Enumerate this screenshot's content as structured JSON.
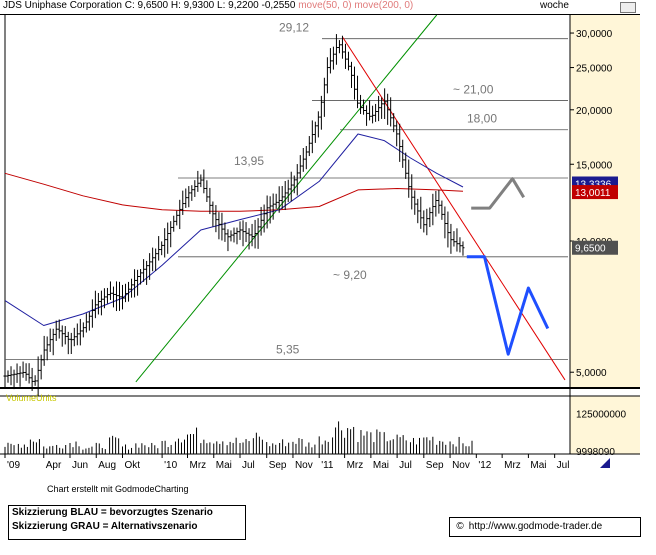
{
  "header": {
    "company": "JDS Uniphase Corporation",
    "quote": "C: 9,6500 H: 9,9300 L: 9,2200 -0,2550",
    "ma_legend": "move(50, 0) move(200, 0)",
    "period": "woche"
  },
  "colors": {
    "price": "#000000",
    "ma50": "#1f1fa0",
    "ma200": "#c00000",
    "trend_down": "#e00000",
    "trend_up": "#009000",
    "scenario_blue": "#1f4fff",
    "scenario_grey": "#808080",
    "axis_bg": "#fff6d8",
    "price_flag": "#505050",
    "ma200_flag": "#c00000",
    "ma50_flag": "#1a1a8f",
    "volume_label": "#c8c800"
  },
  "chart_data": {
    "type": "line",
    "title": "JDS Uniphase Corporation",
    "y_scale": "log",
    "ylim": [
      4.6,
      33
    ],
    "y_ticks": [
      "30,0000",
      "25,0000",
      "20,0000",
      "15,0000",
      "10,0000",
      "5,0000"
    ],
    "y_tick_values": [
      30,
      25,
      20,
      15,
      10,
      5
    ],
    "x_tick_labels": [
      "'09",
      "Apr",
      "Jun",
      "Aug",
      "Okt",
      "'10",
      "Mrz",
      "Mai",
      "Jul",
      "Sep",
      "Nov",
      "'11",
      "Mrz",
      "Mai",
      "Jul",
      "Sep",
      "Nov",
      "'12",
      "Mrz",
      "Mai",
      "Jul"
    ],
    "x_tick_dates": [
      "2009-01-01",
      "2009-04-01",
      "2009-06-01",
      "2009-08-01",
      "2009-10-01",
      "2010-01-01",
      "2010-03-01",
      "2010-05-01",
      "2010-07-01",
      "2010-09-01",
      "2010-11-01",
      "2011-01-01",
      "2011-03-01",
      "2011-05-01",
      "2011-07-01",
      "2011-09-01",
      "2011-11-01",
      "2012-01-01",
      "2012-03-01",
      "2012-05-01",
      "2012-07-01"
    ],
    "grid": false,
    "levels": [
      {
        "value": 29.12,
        "label": "29,12"
      },
      {
        "value": 21.0,
        "label": "~ 21,00"
      },
      {
        "value": 18.0,
        "label": "18,00"
      },
      {
        "value": 13.95,
        "label": "13,95"
      },
      {
        "value": 9.2,
        "label": "~ 9,20"
      },
      {
        "value": 5.35,
        "label": "5,35"
      }
    ],
    "price_series": {
      "name": "",
      "x": [
        "2009-01-01",
        "2009-02-15",
        "2009-03-10",
        "2009-04-01",
        "2009-05-01",
        "2009-06-01",
        "2009-07-01",
        "2009-08-01",
        "2009-09-01",
        "2009-10-01",
        "2009-11-01",
        "2009-12-01",
        "2010-01-01",
        "2010-02-01",
        "2010-03-01",
        "2010-04-01",
        "2010-05-01",
        "2010-06-01",
        "2010-07-01",
        "2010-08-01",
        "2010-09-01",
        "2010-10-01",
        "2010-11-01",
        "2010-12-01",
        "2011-01-01",
        "2011-01-20",
        "2011-02-15",
        "2011-03-15",
        "2011-04-01",
        "2011-05-01",
        "2011-06-01",
        "2011-07-01",
        "2011-08-01",
        "2011-09-01",
        "2011-10-01",
        "2011-11-01",
        "2011-12-01"
      ],
      "y": [
        4.9,
        5.0,
        4.7,
        5.6,
        6.3,
        5.9,
        6.3,
        7.2,
        7.6,
        7.4,
        8.2,
        8.9,
        9.8,
        11.3,
        12.8,
        13.8,
        11.4,
        10.2,
        10.6,
        10.2,
        11.9,
        12.4,
        13.6,
        15.9,
        19.5,
        25.0,
        28.5,
        24.5,
        20.5,
        19.2,
        21.0,
        17.5,
        12.8,
        10.9,
        12.5,
        10.1,
        9.65
      ]
    },
    "ma50": {
      "name": "move(50, 0)",
      "x": [
        "2009-01-01",
        "2009-04-01",
        "2009-07-01",
        "2009-10-01",
        "2010-01-01",
        "2010-04-01",
        "2010-07-01",
        "2010-10-01",
        "2011-01-01",
        "2011-04-01",
        "2011-06-01",
        "2011-08-01",
        "2011-10-01",
        "2011-12-01"
      ],
      "y": [
        7.3,
        6.4,
        6.8,
        7.4,
        8.8,
        10.6,
        11.2,
        11.8,
        13.7,
        17.6,
        17.0,
        15.5,
        14.3,
        13.3
      ]
    },
    "ma200": {
      "name": "move(200, 0)",
      "x": [
        "2009-01-01",
        "2009-04-01",
        "2009-07-01",
        "2009-10-01",
        "2010-01-01",
        "2010-04-01",
        "2010-07-01",
        "2010-10-01",
        "2011-01-01",
        "2011-04-01",
        "2011-07-01",
        "2011-10-01",
        "2011-12-01"
      ],
      "y": [
        14.3,
        13.5,
        12.7,
        12.1,
        11.8,
        11.7,
        11.7,
        11.8,
        12.0,
        13.1,
        13.2,
        13.1,
        13.0
      ]
    },
    "trendline_down": {
      "x": [
        "2011-02-25",
        "2012-07-25"
      ],
      "y": [
        29.3,
        4.8
      ]
    },
    "trendline_up": {
      "x": [
        "2009-11-01",
        "2011-10-01"
      ],
      "y": [
        4.75,
        33.0
      ]
    },
    "scenario_blue": {
      "label": "Skizzierung BLAU = bevorzugtes Szenario",
      "x": [
        "2011-12-10",
        "2012-01-20",
        "2012-03-15",
        "2012-05-01",
        "2012-06-15"
      ],
      "y": [
        9.2,
        9.2,
        5.5,
        7.8,
        6.3
      ]
    },
    "scenario_grey": {
      "label": "Skizzierung GRAU = Alternativszenario",
      "x": [
        "2011-12-20",
        "2012-02-01",
        "2012-03-25",
        "2012-04-20"
      ],
      "y": [
        11.9,
        11.9,
        13.9,
        12.6
      ]
    },
    "price_flag": "9,6500",
    "ma200_flag": "13,0011",
    "ma50_flag": "13,3336",
    "volume": {
      "label": "VolumeUnits",
      "y_ticks": [
        "125000000",
        "9998090"
      ],
      "y_tick_values": [
        125000000,
        9998090
      ],
      "ylim": [
        0,
        160000000
      ],
      "x": [
        "2009-01",
        "2009-02",
        "2009-03",
        "2009-04",
        "2009-05",
        "2009-06",
        "2009-07",
        "2009-08",
        "2009-09",
        "2009-10",
        "2009-11",
        "2009-12",
        "2010-01",
        "2010-02",
        "2010-03",
        "2010-04",
        "2010-05",
        "2010-06",
        "2010-07",
        "2010-08",
        "2010-09",
        "2010-10",
        "2010-11",
        "2010-12",
        "2011-01",
        "2011-02",
        "2011-03",
        "2011-04",
        "2011-05",
        "2011-06",
        "2011-07",
        "2011-08",
        "2011-09",
        "2011-10",
        "2011-11",
        "2011-12"
      ],
      "values": [
        25,
        30,
        45,
        22,
        28,
        35,
        20,
        25,
        40,
        22,
        30,
        25,
        35,
        55,
        60,
        50,
        45,
        40,
        35,
        55,
        30,
        35,
        40,
        30,
        45,
        85,
        80,
        60,
        55,
        50,
        45,
        40,
        48,
        42,
        38,
        30
      ]
    }
  },
  "footer": {
    "credit": "Chart erstellt mit GodmodeCharting",
    "legend_blue": "Skizzierung BLAU = bevorzugtes Szenario",
    "legend_grey": "Skizzierung GRAU = Alternativszenario",
    "url": "http://www.godmode-trader.de",
    "url_icon": "copyright-icon"
  }
}
